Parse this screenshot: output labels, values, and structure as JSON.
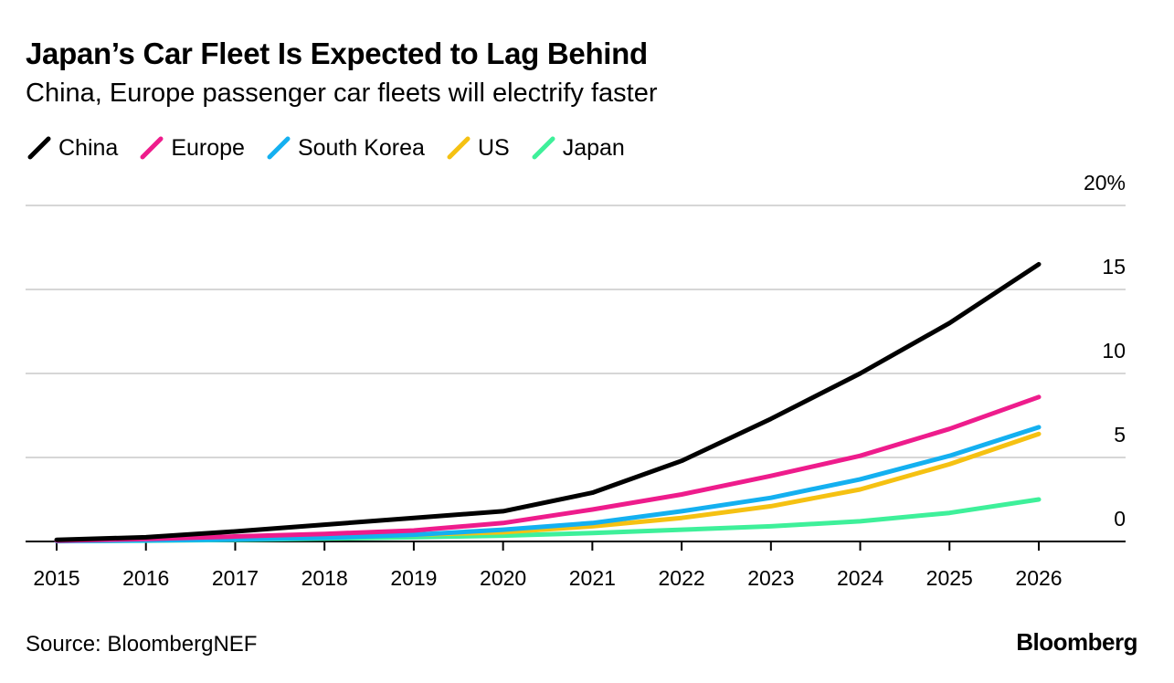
{
  "colors": {
    "China": "#000000",
    "Europe": "#ee1c8c",
    "South Korea": "#14b0f0",
    "US": "#f5c112",
    "Japan": "#3ef09a",
    "grid": "#d6d6d6",
    "axis": "#000000"
  },
  "footer": {
    "source": "Source: BloombergNEF",
    "brand": "Bloomberg"
  },
  "chart_data": {
    "type": "line",
    "title": "Japan’s Car Fleet Is Expected to Lag Behind",
    "subtitle": "China, Europe passenger car fleets will electrify faster",
    "xlabel": "",
    "ylabel": "",
    "ylim": [
      0,
      20
    ],
    "yticks": [
      0,
      5,
      10,
      15,
      20
    ],
    "ytick_labels": [
      "0",
      "5",
      "10",
      "15",
      "20%"
    ],
    "y_axis_position": "right",
    "grid": true,
    "legend_position": "top-left",
    "x": [
      2015,
      2016,
      2017,
      2018,
      2019,
      2020,
      2021,
      2022,
      2023,
      2024,
      2025,
      2026
    ],
    "xtick_labels": [
      "2015",
      "2016",
      "2017",
      "2018",
      "2019",
      "2020",
      "2021",
      "2022",
      "2023",
      "2024",
      "2025",
      "2026"
    ],
    "series": [
      {
        "name": "China",
        "values": [
          0.1,
          0.25,
          0.6,
          1.0,
          1.4,
          1.8,
          2.9,
          4.8,
          7.3,
          10.0,
          13.0,
          16.5
        ]
      },
      {
        "name": "Europe",
        "values": [
          0.05,
          0.15,
          0.3,
          0.45,
          0.65,
          1.1,
          1.9,
          2.8,
          3.9,
          5.1,
          6.7,
          8.6
        ]
      },
      {
        "name": "South Korea",
        "values": [
          0.02,
          0.06,
          0.12,
          0.22,
          0.4,
          0.7,
          1.1,
          1.8,
          2.6,
          3.7,
          5.1,
          6.8
        ]
      },
      {
        "name": "US",
        "values": [
          0.05,
          0.1,
          0.18,
          0.28,
          0.4,
          0.55,
          0.9,
          1.4,
          2.1,
          3.1,
          4.6,
          6.4
        ]
      },
      {
        "name": "Japan",
        "values": [
          0.02,
          0.05,
          0.1,
          0.17,
          0.25,
          0.35,
          0.5,
          0.7,
          0.9,
          1.2,
          1.7,
          2.5
        ]
      }
    ]
  }
}
